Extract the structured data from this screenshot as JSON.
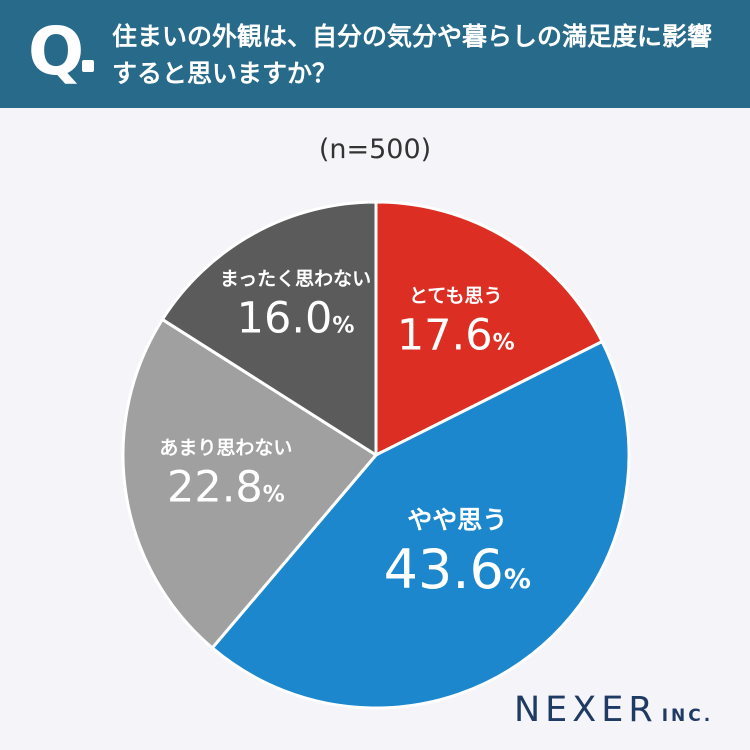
{
  "header": {
    "q_mark": "Q",
    "question": "住まいの外観は、自分の気分や暮らしの満足度に影響すると思いますか？"
  },
  "sample_size": "(n=500)",
  "logo": {
    "main": "NEXER",
    "suffix": "INC."
  },
  "colors": {
    "header_bg": "#286a8a",
    "page_bg": "#f4f4f9",
    "slice_1": "#dc2e23",
    "slice_2": "#1c87cc",
    "slice_3": "#a0a0a0",
    "slice_4": "#5b5b5b",
    "logo": "#1f3a63"
  },
  "chart_data": {
    "type": "pie",
    "title": "",
    "start": "12 o'clock",
    "direction": "clockwise",
    "slices": [
      {
        "label": "とても思う",
        "value": 17.6,
        "display": "17.6",
        "unit": "%",
        "color": "#dc2e23"
      },
      {
        "label": "やや思う",
        "value": 43.6,
        "display": "43.6",
        "unit": "%",
        "color": "#1c87cc"
      },
      {
        "label": "あまり思わない",
        "value": 22.8,
        "display": "22.8",
        "unit": "%",
        "color": "#a0a0a0"
      },
      {
        "label": "まったく思わない",
        "value": 16.0,
        "display": "16.0",
        "unit": "%",
        "color": "#5b5b5b"
      }
    ]
  }
}
